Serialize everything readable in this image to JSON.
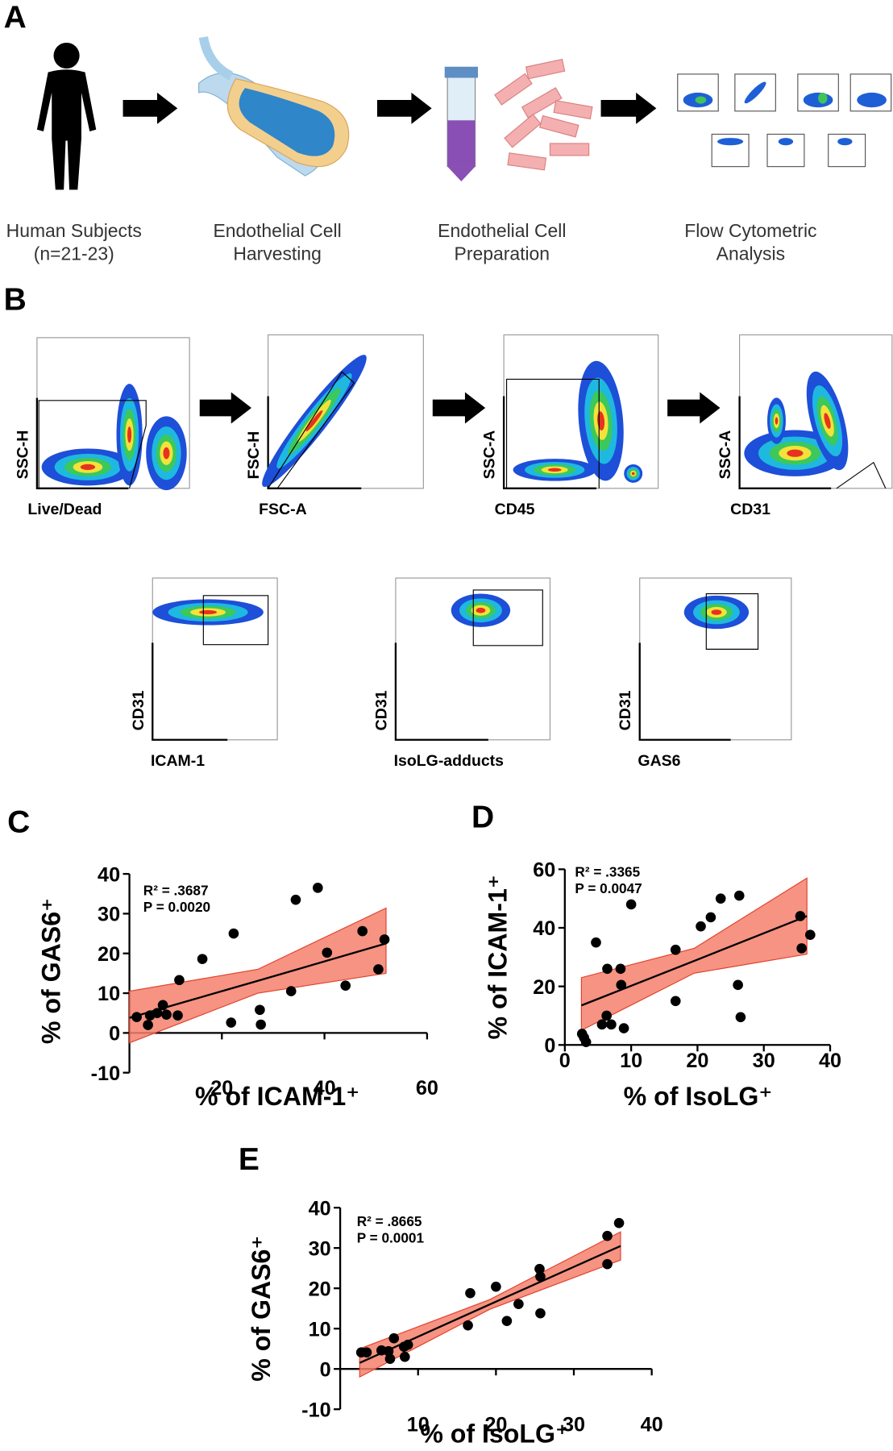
{
  "panels": {
    "A": {
      "letter": "A",
      "steps": [
        [
          "Human Subjects",
          "(n=21-23)"
        ],
        [
          "Endothelial Cell",
          "Harvesting"
        ],
        [
          "Endothelial Cell",
          "Preparation"
        ],
        [
          "Flow Cytometric",
          "Analysis"
        ]
      ]
    },
    "B": {
      "letter": "B",
      "plots": [
        {
          "y": "SSC-H",
          "x": "Live/Dead"
        },
        {
          "y": "FSC-H",
          "x": "FSC-A"
        },
        {
          "y": "SSC-A",
          "x": "CD45"
        },
        {
          "y": "SSC-A",
          "x": "CD31"
        },
        {
          "y": "CD31",
          "x": "ICAM-1"
        },
        {
          "y": "CD31",
          "x": "IsoLG-adducts"
        },
        {
          "y": "CD31",
          "x": "GAS6"
        }
      ]
    }
  },
  "chart_data": [
    {
      "type": "scatter",
      "panel": "C",
      "annotation": [
        "R² = .3687",
        "P = 0.0020"
      ],
      "xlabel": "% of ICAM-1⁺",
      "ylabel": "% of GAS6⁺",
      "x": [
        3.4,
        5.6,
        6,
        7.4,
        8.5,
        9.2,
        11.4,
        11.7,
        16.2,
        21.8,
        22.3,
        27.4,
        27.6,
        33.5,
        34.4,
        38.7,
        40.5,
        44.1,
        47.4,
        50.5,
        51.7
      ],
      "y": [
        4,
        2,
        4.4,
        5,
        7,
        4.6,
        4.4,
        13.3,
        18.6,
        2.6,
        25,
        5.8,
        2.1,
        10.5,
        33.5,
        36.5,
        20.2,
        11.9,
        25.6,
        16,
        23.5
      ],
      "fit": {
        "x": [
          2,
          27,
          52
        ],
        "y": [
          3.8,
          13.1,
          22.5
        ],
        "upper": [
          10.5,
          16,
          31.4
        ],
        "lower": [
          -2.5,
          10,
          15
        ]
      },
      "point_color": "#000000",
      "band_color": "#f4806c",
      "xlim": [
        0,
        60
      ],
      "ylim": [
        -10,
        40
      ],
      "xticks": [
        20,
        40,
        60
      ],
      "yticks": [
        -10,
        0,
        10,
        20,
        30,
        40
      ]
    },
    {
      "type": "scatter",
      "panel": "D",
      "annotation": [
        "R² = .3365",
        "P = 0.0047"
      ],
      "xlabel": "% of IsoLG⁺",
      "ylabel": "% of ICAM-1⁺",
      "x": [
        2.6,
        2.9,
        3.2,
        4.7,
        5.6,
        6.3,
        6.4,
        7,
        8.4,
        8.5,
        8.9,
        10,
        16.7,
        16.7,
        20.5,
        22,
        23.5,
        26.3,
        26.1,
        26.5,
        35.5,
        35.7,
        37
      ],
      "y": [
        3.8,
        2.5,
        1,
        35,
        7,
        10,
        26,
        7,
        26,
        20.5,
        5.7,
        48,
        15,
        32.5,
        40.5,
        43.6,
        50,
        51,
        20.5,
        9.5,
        44,
        33,
        37.6
      ],
      "fit": {
        "x": [
          2.5,
          19.5,
          36.5
        ],
        "y": [
          13.5,
          28.7,
          44
        ],
        "upper": [
          23,
          33,
          57
        ],
        "lower": [
          5,
          24.5,
          31
        ]
      },
      "point_color": "#000000",
      "band_color": "#f4806c",
      "xlim": [
        0,
        40
      ],
      "ylim": [
        0,
        60
      ],
      "xticks": [
        0,
        10,
        20,
        30,
        40
      ],
      "yticks": [
        0,
        20,
        40,
        60
      ]
    },
    {
      "type": "scatter",
      "panel": "E",
      "annotation": [
        "R² = .8665",
        "P = 0.0001"
      ],
      "xlabel": "% of IsoLG⁺",
      "ylabel": "% of GAS6⁺",
      "x": [
        2.7,
        3.4,
        5.3,
        6.2,
        6.4,
        6.9,
        8.2,
        8.7,
        8.3,
        16.4,
        16.7,
        20,
        21.4,
        22.9,
        25.6,
        25.7,
        25.7,
        34.3,
        34.3,
        35.8
      ],
      "y": [
        4.1,
        4.1,
        4.6,
        4.4,
        2.5,
        7.6,
        5.5,
        6,
        3,
        10.8,
        18.8,
        20.4,
        11.9,
        16.1,
        24.8,
        22.9,
        13.8,
        33,
        26,
        36.2
      ],
      "fit": {
        "x": [
          2.5,
          19.2,
          36
        ],
        "y": [
          1.5,
          16,
          30.5
        ],
        "upper": [
          5,
          17.2,
          34
        ],
        "lower": [
          -2,
          14.8,
          27
        ]
      },
      "point_color": "#000000",
      "band_color": "#f4806c",
      "xlim": [
        0,
        40
      ],
      "ylim": [
        -10,
        40
      ],
      "xticks": [
        10,
        20,
        30,
        40
      ],
      "yticks": [
        -10,
        0,
        10,
        20,
        30,
        40
      ]
    }
  ]
}
